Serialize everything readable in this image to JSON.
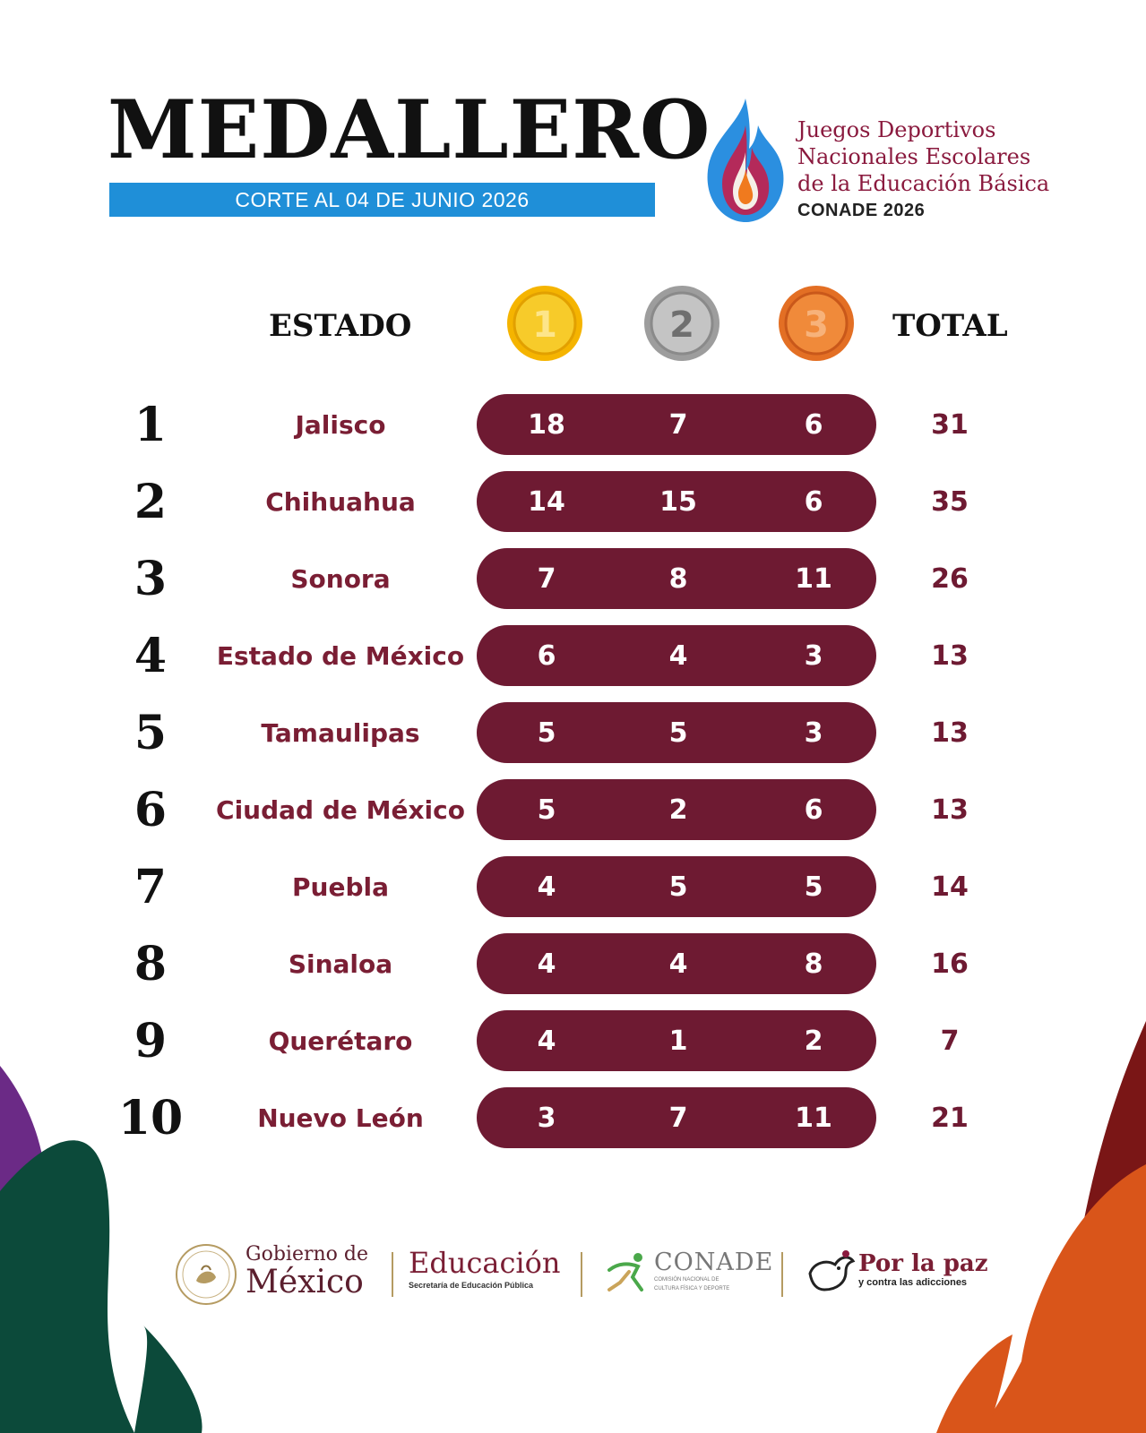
{
  "header": {
    "title": "MEDALLERO",
    "cut_date": "CORTE AL 04 DE JUNIO 2026",
    "event_logo": {
      "line1": "Juegos Deportivos",
      "line2": "Nacionales Escolares",
      "line3": "de la Educación Básica",
      "line4": "CONADE 2026",
      "icon": "flame-icon"
    }
  },
  "table": {
    "headers": {
      "state": "ESTADO",
      "gold": "1",
      "silver": "2",
      "bronze": "3",
      "total": "TOTAL"
    },
    "rows": [
      {
        "rank": "1",
        "state": "Jalisco",
        "gold": "18",
        "silver": "7",
        "bronze": "6",
        "total": "31"
      },
      {
        "rank": "2",
        "state": "Chihuahua",
        "gold": "14",
        "silver": "15",
        "bronze": "6",
        "total": "35"
      },
      {
        "rank": "3",
        "state": "Sonora",
        "gold": "7",
        "silver": "8",
        "bronze": "11",
        "total": "26"
      },
      {
        "rank": "4",
        "state": "Estado de México",
        "gold": "6",
        "silver": "4",
        "bronze": "3",
        "total": "13"
      },
      {
        "rank": "5",
        "state": "Tamaulipas",
        "gold": "5",
        "silver": "5",
        "bronze": "3",
        "total": "13"
      },
      {
        "rank": "6",
        "state": "Ciudad de México",
        "gold": "5",
        "silver": "2",
        "bronze": "6",
        "total": "13"
      },
      {
        "rank": "7",
        "state": "Puebla",
        "gold": "4",
        "silver": "5",
        "bronze": "5",
        "total": "14"
      },
      {
        "rank": "8",
        "state": "Sinaloa",
        "gold": "4",
        "silver": "4",
        "bronze": "8",
        "total": "16"
      },
      {
        "rank": "9",
        "state": "Querétaro",
        "gold": "4",
        "silver": "1",
        "bronze": "2",
        "total": "7"
      },
      {
        "rank": "10",
        "state": "Nuevo León",
        "gold": "3",
        "silver": "7",
        "bronze": "11",
        "total": "21"
      }
    ]
  },
  "footer": {
    "gobierno": {
      "line1": "Gobierno de",
      "line2": "México",
      "icon": "national-seal-icon"
    },
    "educacion": {
      "line1": "Educación",
      "line2": "Secretaría de Educación Pública"
    },
    "conade": {
      "line1": "CONADE",
      "line2": "COMISIÓN NACIONAL DE",
      "line3": "CULTURA FÍSICA Y DEPORTE",
      "icon": "runner-icon"
    },
    "paz": {
      "line1": "Por la paz",
      "line2": "y contra las adicciones",
      "icon": "dove-icon"
    }
  },
  "colors": {
    "primary_maroon": "#6e1a32",
    "state_text": "#7a1e34",
    "cut_bar_blue": "#1f8fd8",
    "gold": "#f2b705",
    "silver": "#a7a7a7",
    "bronze": "#e07a2c",
    "deco_purple": "#6b2a86",
    "deco_green": "#0c4a3a",
    "deco_orange": "#d9551a",
    "deco_dark_red": "#7a1616"
  }
}
